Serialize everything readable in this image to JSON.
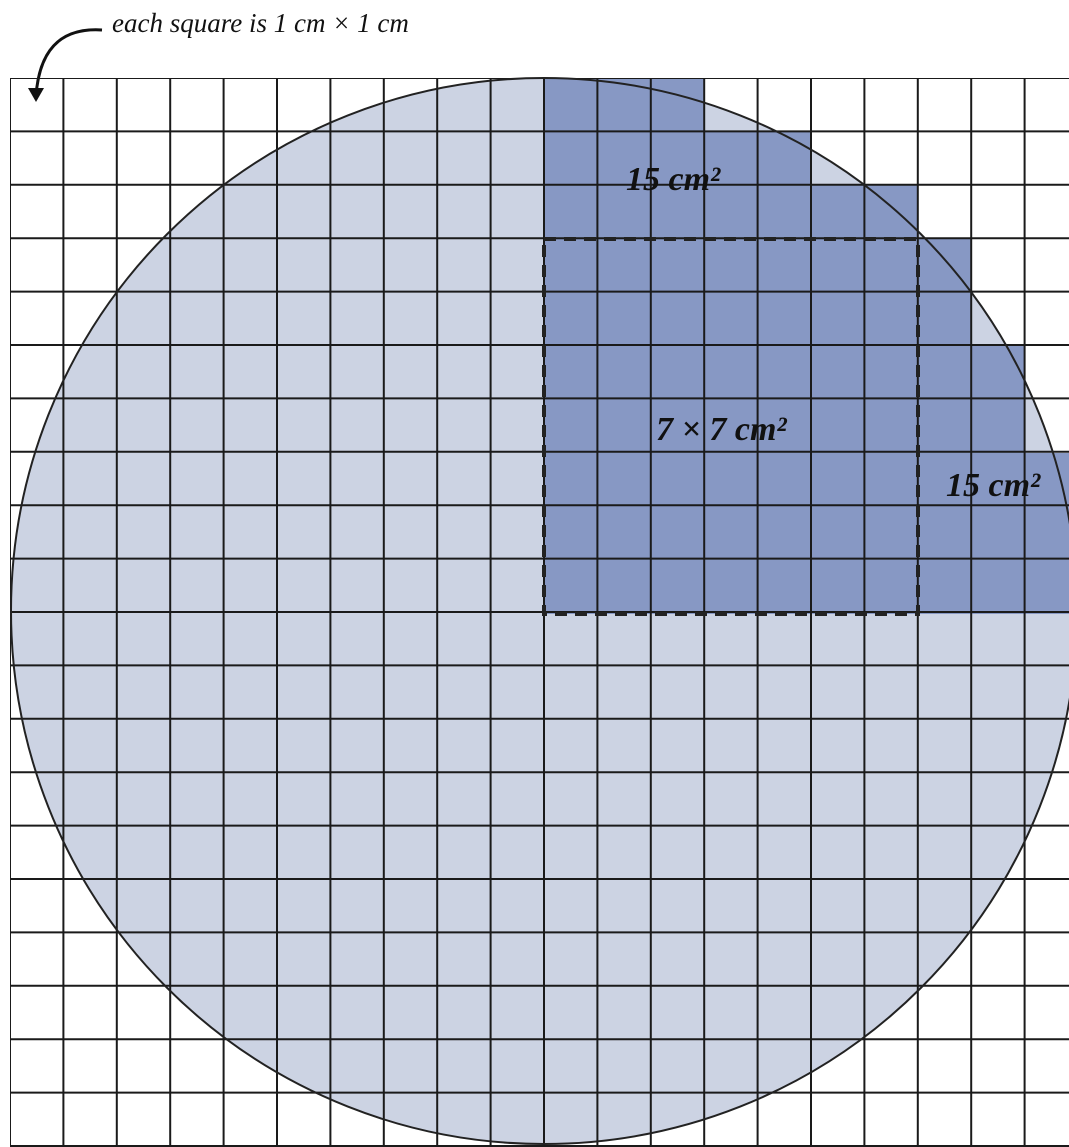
{
  "caption": "each square is 1 cm × 1 cm",
  "labels": {
    "top_region": "15 cm²",
    "center_square": "7 × 7 cm²",
    "right_region": "15 cm²"
  },
  "colors": {
    "circle_fill": "#ccd3e3",
    "shaded_fill": "#8798c4",
    "grid_line": "#1a1a1a",
    "dashed_outline": "#222222"
  }
}
